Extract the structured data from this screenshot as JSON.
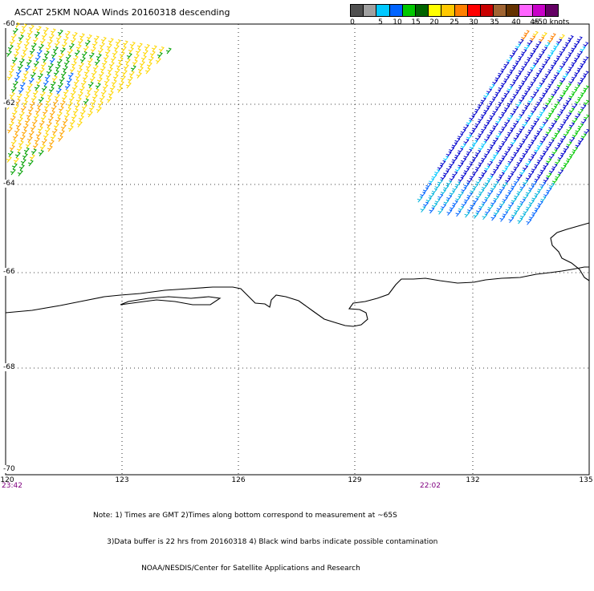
{
  "title": "ASCAT 25KM NOAA Winds 20160318 descending",
  "legend": {
    "labels": [
      "0",
      "5",
      "10",
      "15",
      "20",
      "25",
      "30",
      "35",
      "40",
      "45",
      ">50 knots"
    ],
    "colors": [
      "#505050",
      "#a0a0a0",
      "#00c8ff",
      "#0064ff",
      "#00c800",
      "#006400",
      "#ffff00",
      "#ffc800",
      "#ff8000",
      "#ff0000",
      "#c80000",
      "#a06432",
      "#643200",
      "#ff64ff",
      "#c800c8",
      "#640064"
    ]
  },
  "axes": {
    "lat_labels": [
      "-60",
      "-62",
      "-64",
      "-66",
      "-68",
      "-70"
    ],
    "lon_labels": [
      "120",
      "123",
      "126",
      "129",
      "132",
      "135"
    ]
  },
  "times": {
    "left": "23:42",
    "right": "22:02"
  },
  "notes": [
    "Note: 1) Times are GMT 2)Times along bottom correspond to measurement at ~65S",
    "      3)Data buffer is 22 hrs from 20160318 4) Black wind barbs indicate possible contamination",
    "                     NOAA/NESDIS/Center for Satellite Applications and Research"
  ]
}
